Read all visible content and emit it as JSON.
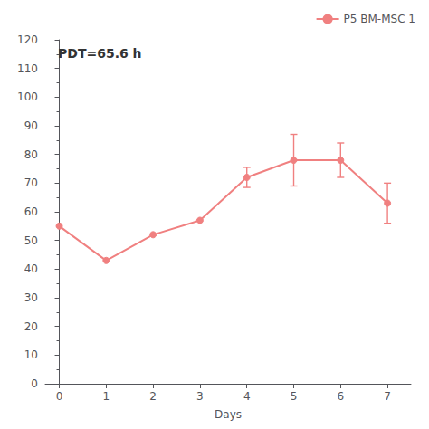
{
  "chart_data": {
    "type": "line",
    "x": [
      0,
      1,
      2,
      3,
      4,
      5,
      6,
      7
    ],
    "series": [
      {
        "name": "P5 BM-MSC 1",
        "color": "#F08080",
        "marker": "circle",
        "values": [
          55,
          43,
          52,
          57,
          72,
          78,
          78,
          63
        ],
        "yerr": [
          0,
          0,
          0,
          0,
          3.5,
          9,
          6,
          7
        ]
      }
    ],
    "xlabel": "Days",
    "annotation": "PDT=65.6 h",
    "xlim": [
      -0.3,
      7.5
    ],
    "xticks": [
      0,
      1,
      2,
      3,
      4,
      5,
      6,
      7
    ],
    "ylim": [
      0,
      120
    ],
    "yticks": [
      0,
      10,
      20,
      30,
      40,
      50,
      60,
      70,
      80,
      90,
      100,
      110,
      120
    ],
    "grid": false,
    "legend": "upper right"
  }
}
